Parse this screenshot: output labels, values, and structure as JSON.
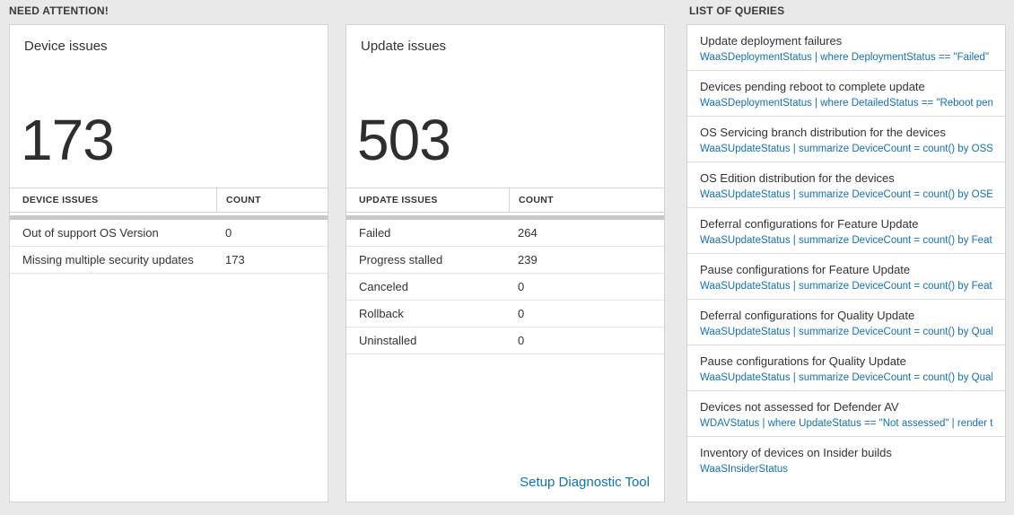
{
  "colors": {
    "accent": "#0e72b8"
  },
  "sections": {
    "need_attention": {
      "title": "NEED ATTENTION!"
    },
    "queries": {
      "title": "LIST OF QUERIES"
    }
  },
  "device_card": {
    "title": "Device issues",
    "count": "173",
    "table": {
      "headers": [
        "DEVICE ISSUES",
        "COUNT"
      ],
      "rows": [
        [
          "Out of support OS Version",
          "0"
        ],
        [
          "Missing multiple security updates",
          "173"
        ]
      ]
    }
  },
  "update_card": {
    "title": "Update issues",
    "count": "503",
    "table": {
      "headers": [
        "UPDATE ISSUES",
        "COUNT"
      ],
      "rows": [
        [
          "Failed",
          "264"
        ],
        [
          "Progress stalled",
          "239"
        ],
        [
          "Canceled",
          "0"
        ],
        [
          "Rollback",
          "0"
        ],
        [
          "Uninstalled",
          "0"
        ]
      ]
    },
    "footer_link": "Setup Diagnostic Tool"
  },
  "queries": [
    {
      "title": "Update deployment failures",
      "query": "WaaSDeploymentStatus | where DeploymentStatus == \"Failed\" |..."
    },
    {
      "title": "Devices pending reboot to complete update",
      "query": "WaaSDeploymentStatus | where DetailedStatus == \"Reboot pend..."
    },
    {
      "title": "OS Servicing branch distribution for the devices",
      "query": "WaaSUpdateStatus | summarize DeviceCount = count() by OSSer..."
    },
    {
      "title": "OS Edition distribution for the devices",
      "query": "WaaSUpdateStatus | summarize DeviceCount = count() by OSEdit..."
    },
    {
      "title": "Deferral configurations for Feature Update",
      "query": "WaaSUpdateStatus | summarize DeviceCount = count() by Featur..."
    },
    {
      "title": "Pause configurations for Feature Update",
      "query": "WaaSUpdateStatus | summarize DeviceCount = count() by Featur..."
    },
    {
      "title": "Deferral configurations for Quality Update",
      "query": "WaaSUpdateStatus | summarize DeviceCount = count() by Qualit..."
    },
    {
      "title": "Pause configurations for Quality Update",
      "query": "WaaSUpdateStatus | summarize DeviceCount = count() by Qualit..."
    },
    {
      "title": "Devices not assessed for Defender AV",
      "query": "WDAVStatus | where UpdateStatus == \"Not assessed\" | render ta..."
    },
    {
      "title": "Inventory of devices on Insider builds",
      "query": "WaaSInsiderStatus"
    }
  ]
}
